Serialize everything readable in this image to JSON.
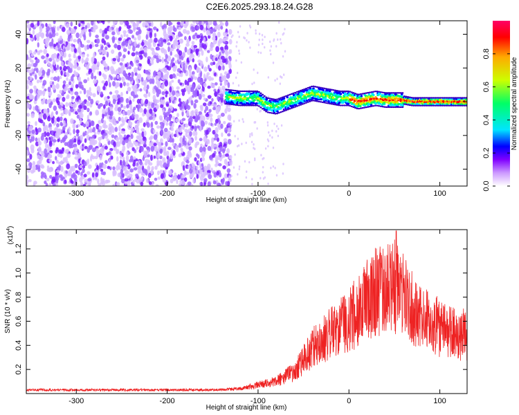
{
  "title": "C2E6.2025.293.18.24.G28",
  "chart_data": [
    {
      "type": "heatmap",
      "xlabel": "Height of straight line (km)",
      "ylabel": "Frequency (Hz)",
      "xlim": [
        -355,
        130
      ],
      "ylim": [
        -50,
        48
      ],
      "x_ticks": [
        -300,
        -200,
        -100,
        0,
        100
      ],
      "y_ticks": [
        -40,
        -20,
        0,
        20,
        40
      ],
      "colorbar": {
        "label": "Normalized spectral amplitude",
        "range": [
          0,
          1
        ],
        "ticks": [
          "0.0",
          "0.2",
          "0.4",
          "0.6",
          "0.8"
        ],
        "colors": [
          "#ffffff",
          "#cc99ff",
          "#8000ff",
          "#0000ff",
          "#00e5ff",
          "#00ff66",
          "#ccff00",
          "#ffaa00",
          "#ff0000",
          "#ff0066"
        ]
      },
      "ridge": {
        "x": [
          -135,
          -120,
          -100,
          -90,
          -80,
          -70,
          -60,
          -50,
          -40,
          -30,
          -20,
          -10,
          0,
          10,
          20,
          30,
          40,
          50,
          60,
          70,
          80,
          100,
          130
        ],
        "y": [
          3,
          2,
          2,
          -2,
          -3,
          -1,
          1,
          3,
          5,
          4,
          3,
          2,
          2,
          0,
          1,
          2,
          1,
          1,
          1,
          0,
          0,
          0,
          0
        ]
      }
    },
    {
      "type": "line",
      "xlabel": "Height of straight line (km)",
      "ylabel": "SNR (10 * v/v)",
      "y_scale_label": "(x10",
      "y_scale_exponent": "4",
      "xlim": [
        -355,
        130
      ],
      "ylim": [
        0,
        1.36
      ],
      "x_ticks": [
        -300,
        -200,
        -100,
        0,
        100
      ],
      "y_ticks": [
        0.2,
        0.4,
        0.6,
        0.8,
        1.0,
        1.2
      ],
      "y_tick_labels": [
        "0.2",
        "0.4",
        "0.6",
        "0.8",
        "1.0",
        "1.2"
      ],
      "color": "#ee2222",
      "envelope": {
        "x": [
          -355,
          -150,
          -120,
          -100,
          -80,
          -60,
          -50,
          -40,
          -30,
          -20,
          -10,
          0,
          10,
          20,
          30,
          40,
          50,
          60,
          70,
          80,
          90,
          100,
          110,
          120,
          130
        ],
        "y": [
          0.03,
          0.03,
          0.04,
          0.07,
          0.1,
          0.18,
          0.28,
          0.38,
          0.45,
          0.5,
          0.55,
          0.6,
          0.7,
          0.78,
          0.85,
          0.88,
          0.9,
          0.8,
          0.7,
          0.62,
          0.58,
          0.55,
          0.52,
          0.5,
          0.48
        ]
      },
      "peak": {
        "x": 52,
        "y": 1.35
      }
    }
  ]
}
